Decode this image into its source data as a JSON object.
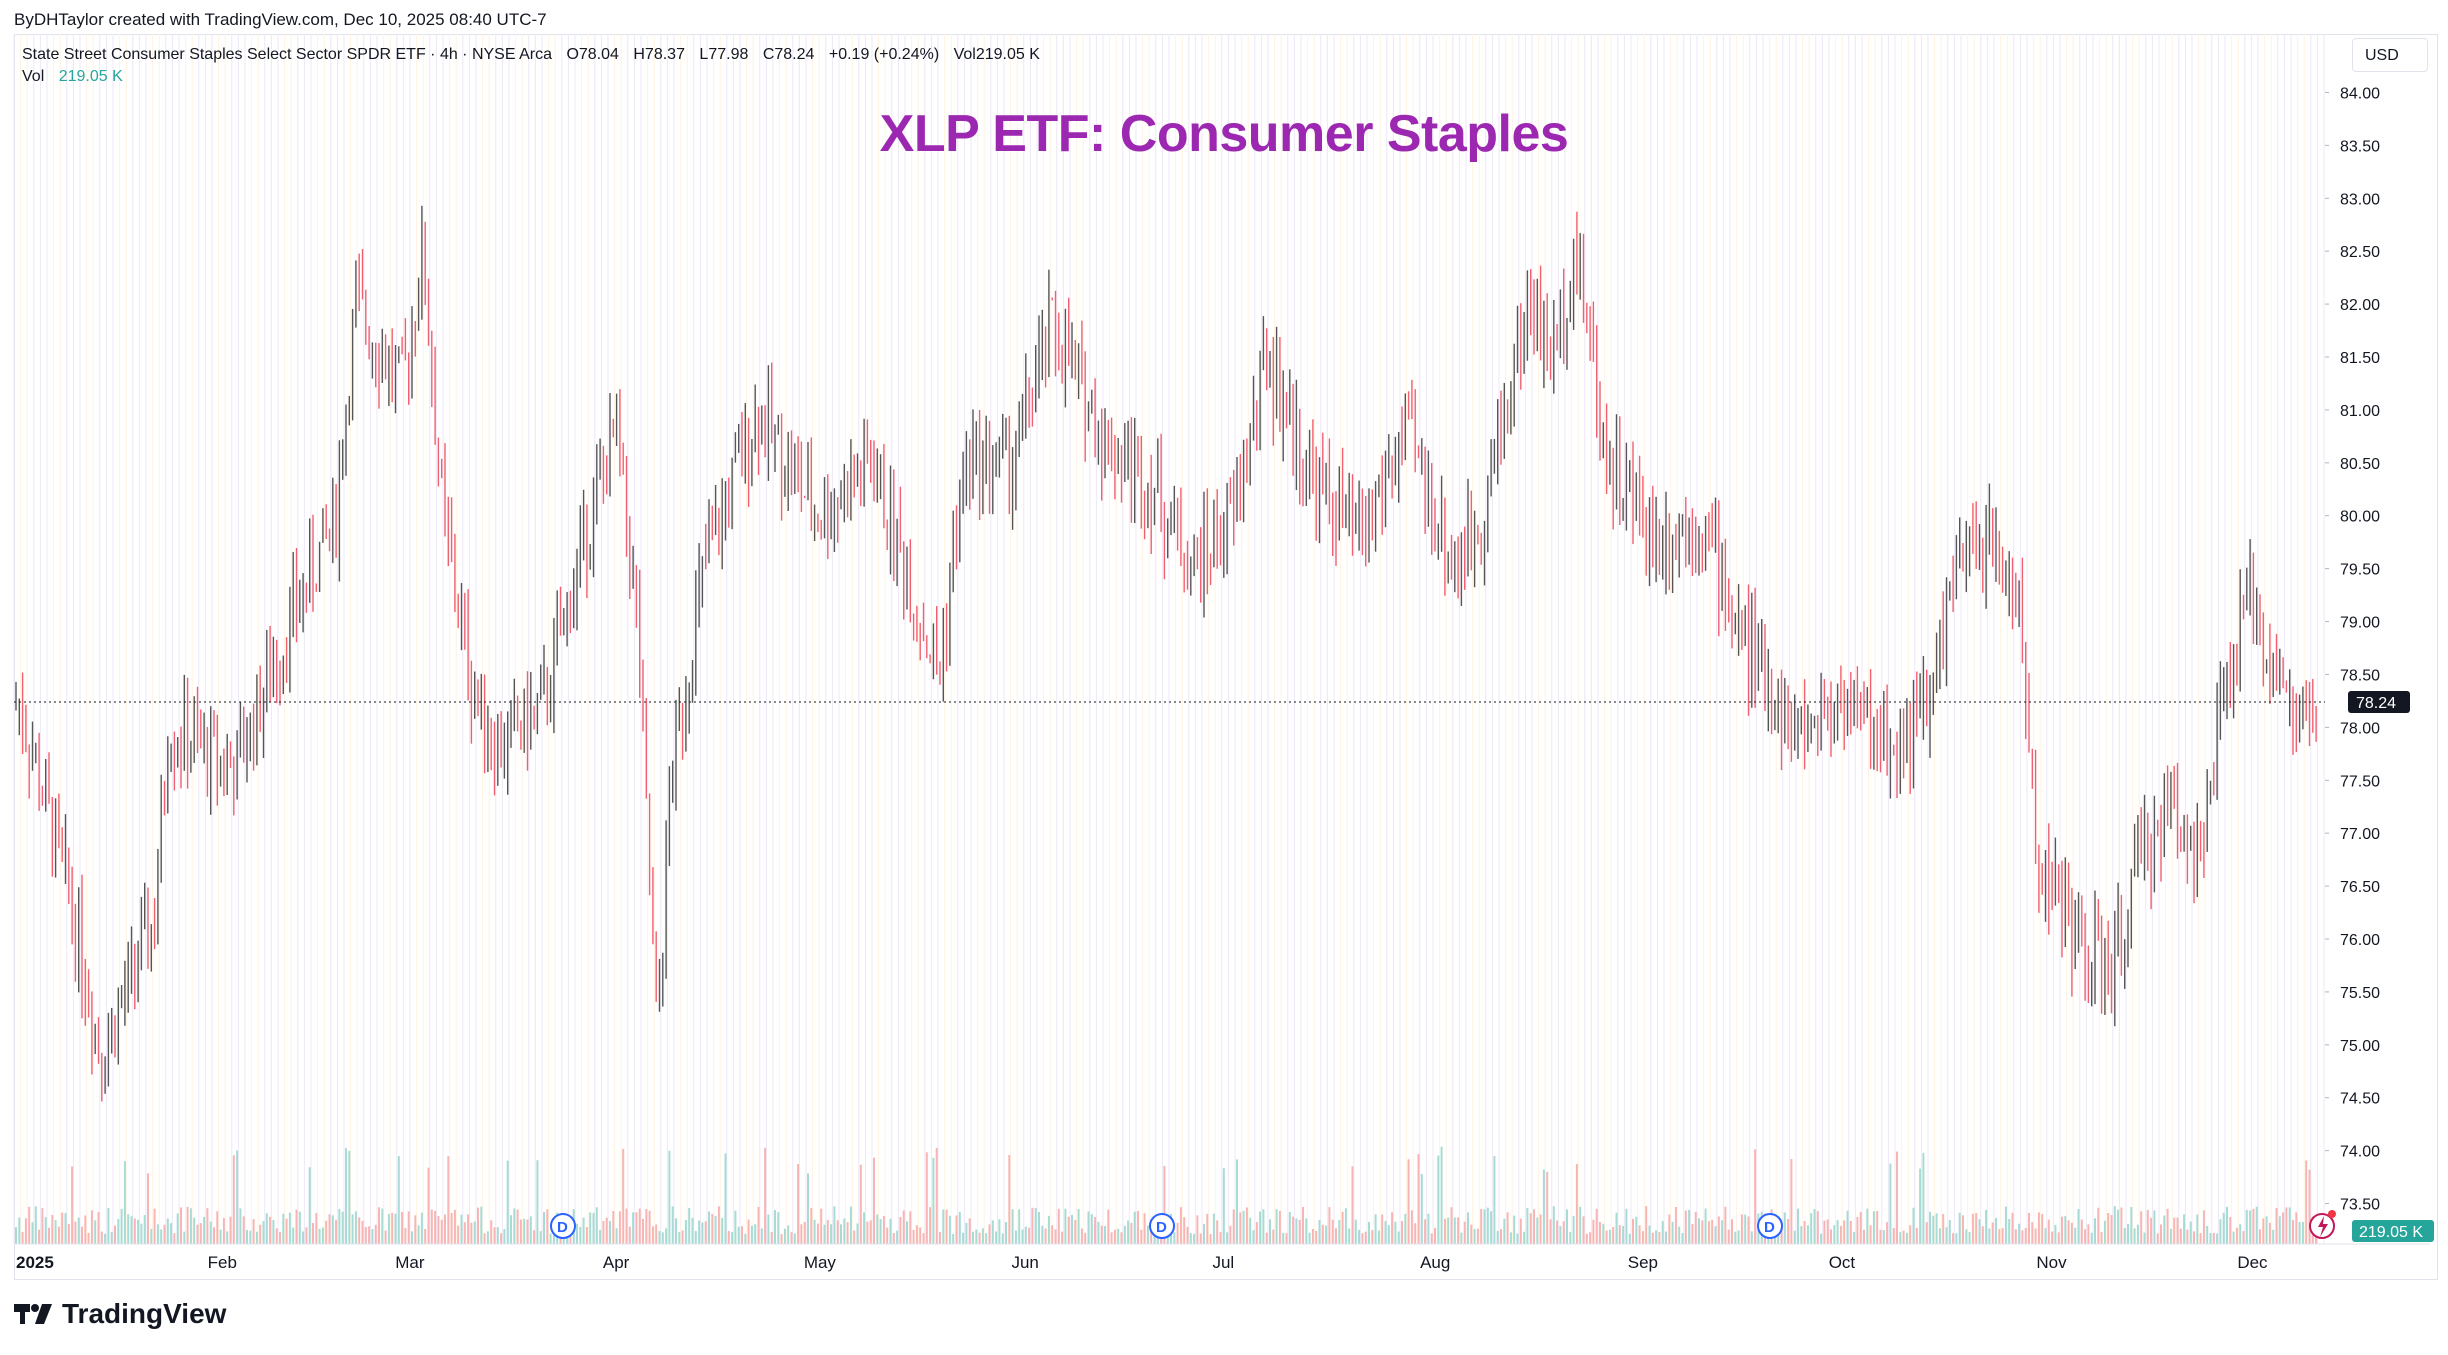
{
  "credit": "ByDHTaylor created with TradingView.com, Dec 10, 2025 08:40 UTC-7",
  "legend": {
    "symbol": "State Street Consumer Staples Select Sector SPDR ETF · 4h · NYSE Arca",
    "open": "O78.04",
    "high": "H78.37",
    "low": "L77.98",
    "close": "C78.24",
    "change": "+0.19 (+0.24%)",
    "vol": "Vol219.05 K",
    "vol_label": "Vol",
    "vol_value": "219.05 K"
  },
  "currency_button": "USD",
  "footer_brand": "TradingView",
  "colors": {
    "up": "#26a69a",
    "down": "#ef5350",
    "candle": "#555555",
    "candle_down": "#f06070",
    "title": "#9c27b0",
    "dividend": "#2962ff"
  },
  "chart_data": {
    "type": "candlestick",
    "title": "XLP ETF: Consumer Staples",
    "ticker": "XLP",
    "interval": "4h",
    "ylim": [
      73.25,
      84.25
    ],
    "y_ticks": [
      "84.00",
      "83.50",
      "83.00",
      "82.50",
      "82.00",
      "81.50",
      "81.00",
      "80.50",
      "80.00",
      "79.50",
      "79.00",
      "78.50",
      "78.00",
      "77.50",
      "77.00",
      "76.50",
      "76.00",
      "75.50",
      "75.00",
      "74.50",
      "74.00",
      "73.50"
    ],
    "x_labels": [
      "2025",
      "Feb",
      "Mar",
      "Apr",
      "May",
      "Jun",
      "Jul",
      "Aug",
      "Sep",
      "Oct",
      "Nov",
      "Dec"
    ],
    "last_price": 78.24,
    "last_price_label": "78.24",
    "last_volume_label": "219.05 K",
    "dividend_markers": [
      "D",
      "D",
      "D"
    ],
    "price_path": [
      {
        "date": "2025-01-02",
        "close": 78.2
      },
      {
        "date": "2025-01-10",
        "close": 76.2
      },
      {
        "date": "2025-01-14",
        "close": 74.9
      },
      {
        "date": "2025-01-22",
        "close": 76.2
      },
      {
        "date": "2025-01-24",
        "close": 78.0
      },
      {
        "date": "2025-02-03",
        "close": 77.6
      },
      {
        "date": "2025-02-10",
        "close": 78.8
      },
      {
        "date": "2025-02-18",
        "close": 80.0
      },
      {
        "date": "2025-02-21",
        "close": 82.0
      },
      {
        "date": "2025-02-28",
        "close": 81.2
      },
      {
        "date": "2025-03-03",
        "close": 82.5
      },
      {
        "date": "2025-03-06",
        "close": 80.0
      },
      {
        "date": "2025-03-10",
        "close": 78.5
      },
      {
        "date": "2025-03-14",
        "close": 77.8
      },
      {
        "date": "2025-03-21",
        "close": 78.2
      },
      {
        "date": "2025-03-28",
        "close": 80.0
      },
      {
        "date": "2025-04-01",
        "close": 80.8
      },
      {
        "date": "2025-04-04",
        "close": 79.0
      },
      {
        "date": "2025-04-07",
        "close": 75.0
      },
      {
        "date": "2025-04-09",
        "close": 77.5
      },
      {
        "date": "2025-04-14",
        "close": 79.5
      },
      {
        "date": "2025-04-22",
        "close": 81.0
      },
      {
        "date": "2025-05-01",
        "close": 80.0
      },
      {
        "date": "2025-05-09",
        "close": 80.5
      },
      {
        "date": "2025-05-15",
        "close": 79.3
      },
      {
        "date": "2025-05-19",
        "close": 78.5
      },
      {
        "date": "2025-05-23",
        "close": 80.5
      },
      {
        "date": "2025-05-30",
        "close": 80.5
      },
      {
        "date": "2025-06-05",
        "close": 81.8
      },
      {
        "date": "2025-06-13",
        "close": 80.7
      },
      {
        "date": "2025-06-20",
        "close": 80.3
      },
      {
        "date": "2025-06-26",
        "close": 79.5
      },
      {
        "date": "2025-07-02",
        "close": 80.0
      },
      {
        "date": "2025-07-07",
        "close": 81.5
      },
      {
        "date": "2025-07-14",
        "close": 80.3
      },
      {
        "date": "2025-07-21",
        "close": 79.8
      },
      {
        "date": "2025-07-28",
        "close": 80.8
      },
      {
        "date": "2025-08-04",
        "close": 79.5
      },
      {
        "date": "2025-08-08",
        "close": 80.0
      },
      {
        "date": "2025-08-15",
        "close": 82.0
      },
      {
        "date": "2025-08-19",
        "close": 81.5
      },
      {
        "date": "2025-08-22",
        "close": 82.6
      },
      {
        "date": "2025-08-27",
        "close": 80.5
      },
      {
        "date": "2025-09-03",
        "close": 79.8
      },
      {
        "date": "2025-09-10",
        "close": 80.0
      },
      {
        "date": "2025-09-15",
        "close": 79.0
      },
      {
        "date": "2025-09-19",
        "close": 78.5
      },
      {
        "date": "2025-09-24",
        "close": 77.9
      },
      {
        "date": "2025-10-01",
        "close": 78.3
      },
      {
        "date": "2025-10-08",
        "close": 77.8
      },
      {
        "date": "2025-10-14",
        "close": 78.2
      },
      {
        "date": "2025-10-17",
        "close": 79.3
      },
      {
        "date": "2025-10-22",
        "close": 79.8
      },
      {
        "date": "2025-10-27",
        "close": 79.3
      },
      {
        "date": "2025-10-30",
        "close": 76.8
      },
      {
        "date": "2025-11-05",
        "close": 76.0
      },
      {
        "date": "2025-11-10",
        "close": 75.6
      },
      {
        "date": "2025-11-14",
        "close": 76.7
      },
      {
        "date": "2025-11-19",
        "close": 77.3
      },
      {
        "date": "2025-11-24",
        "close": 76.8
      },
      {
        "date": "2025-11-26",
        "close": 78.0
      },
      {
        "date": "2025-12-01",
        "close": 79.3
      },
      {
        "date": "2025-12-04",
        "close": 78.6
      },
      {
        "date": "2025-12-08",
        "close": 78.0
      },
      {
        "date": "2025-12-10",
        "close": 78.24
      }
    ]
  }
}
